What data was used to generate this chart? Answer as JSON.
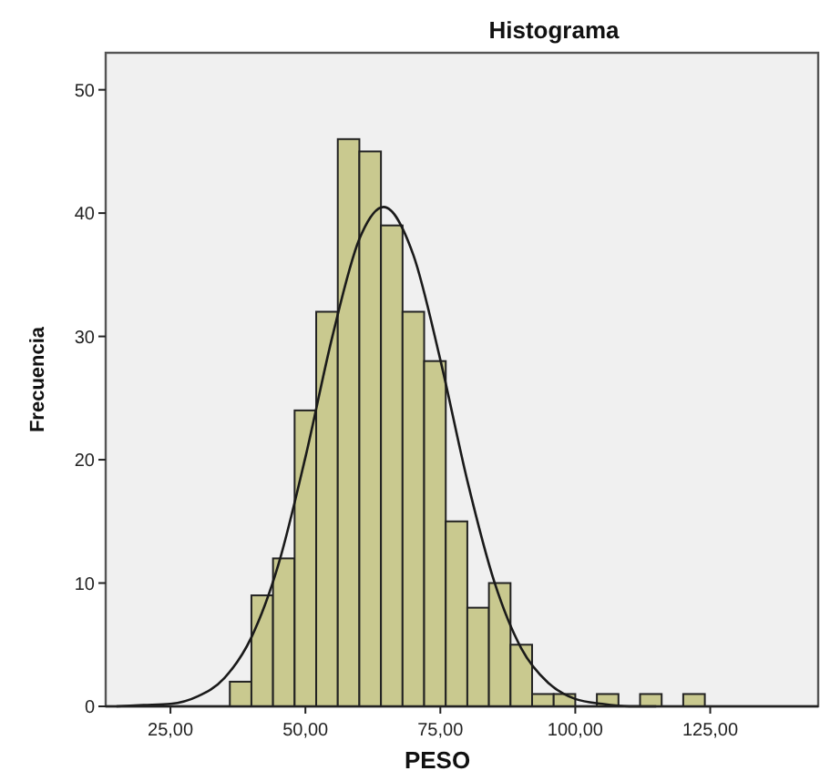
{
  "chart_data": {
    "type": "histogram",
    "title": "Histograma",
    "xlabel": "PESO",
    "ylabel": "Frecuencia",
    "bins": [
      36,
      40,
      44,
      48,
      52,
      56,
      60,
      64,
      68,
      72,
      76,
      80,
      84,
      88,
      92,
      96,
      100,
      104,
      108,
      112,
      116,
      120,
      124
    ],
    "values": [
      2,
      9,
      12,
      24,
      32,
      46,
      45,
      39,
      32,
      28,
      15,
      8,
      10,
      5,
      1,
      1,
      0,
      1,
      0,
      1,
      0,
      1
    ],
    "color": "#c9c98f",
    "series": [
      {
        "type": "line",
        "color": "#1a1a1a",
        "x": [
          15,
          20,
          25,
          30,
          35,
          40,
          45,
          50,
          55,
          60,
          64.5,
          70,
          75,
          80,
          85,
          90,
          95,
          100,
          105,
          110,
          115
        ],
        "values": [
          0,
          0.1,
          0.2,
          0.8,
          2.3,
          5.6,
          11.5,
          20.2,
          30,
          37.9,
          40.5,
          36.6,
          28.1,
          18.3,
          10.1,
          4.7,
          1.9,
          0.6,
          0.2,
          0,
          0
        ]
      }
    ],
    "xlim": [
      13,
      145
    ],
    "ylim": [
      0,
      53
    ],
    "xticks": [
      {
        "value": 25,
        "label": "25,00"
      },
      {
        "value": 50,
        "label": "50,00"
      },
      {
        "value": 75,
        "label": "75,00"
      },
      {
        "value": 100,
        "label": "100,00"
      },
      {
        "value": 125,
        "label": "125,00"
      }
    ],
    "yticks": [
      0,
      10,
      20,
      30,
      40,
      50
    ],
    "grid": false,
    "marker": "none",
    "line_style": "solid"
  }
}
